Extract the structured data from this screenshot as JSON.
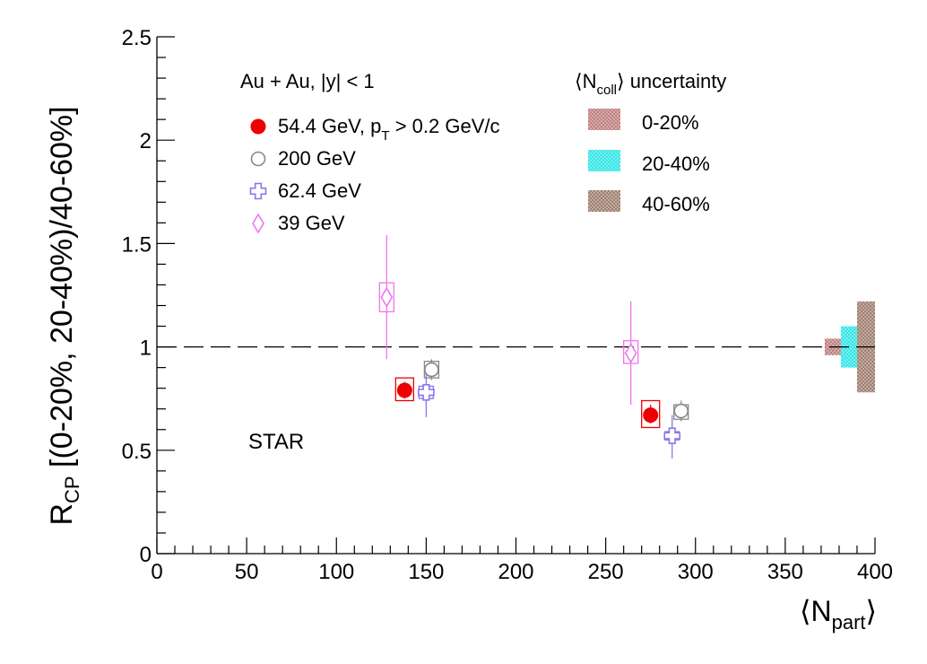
{
  "chart_data": {
    "type": "scatter",
    "title": "",
    "ylabel_main": "R",
    "ylabel_sub": "CP",
    "ylabel_rest": " [(0-20%, 20-40%)/40-60%]",
    "xlabel_open": "⟨N",
    "xlabel_sub": "part",
    "xlabel_close": "⟩",
    "xlim": [
      0,
      400
    ],
    "ylim": [
      0,
      2.5
    ],
    "x_ticks": [
      0,
      50,
      100,
      150,
      200,
      250,
      300,
      350,
      400
    ],
    "x_tick_labels": [
      "0",
      "50",
      "100",
      "150",
      "200",
      "250",
      "300",
      "350",
      "400"
    ],
    "y_ticks": [
      0,
      0.5,
      1,
      1.5,
      2,
      2.5
    ],
    "y_tick_labels": [
      "0",
      "0.5",
      "1",
      "1.5",
      "2",
      "2.5"
    ],
    "reference_line": 1,
    "annotations": {
      "system": "Au + Au, |y| < 1",
      "experiment": "STAR"
    },
    "legend_placement": "top-left",
    "series": [
      {
        "name": "54.4 GeV,  p",
        "name_sub": "T",
        "name_rest": " > 0.2 GeV/c",
        "marker": "filled-circle",
        "color": "#ee0000",
        "points": [
          {
            "x": 138,
            "y": 0.79,
            "stat_lo": 0.75,
            "stat_hi": 0.83,
            "sys_lo": 0.74,
            "sys_hi": 0.85
          },
          {
            "x": 275,
            "y": 0.67,
            "stat_lo": 0.63,
            "stat_hi": 0.72,
            "sys_lo": 0.61,
            "sys_hi": 0.74
          }
        ]
      },
      {
        "name": "200 GeV",
        "marker": "open-circle",
        "color": "#888888",
        "points": [
          {
            "x": 153,
            "y": 0.89,
            "stat_lo": 0.84,
            "stat_hi": 0.94,
            "sys_lo": 0.85,
            "sys_hi": 0.93
          },
          {
            "x": 292,
            "y": 0.69,
            "stat_lo": 0.64,
            "stat_hi": 0.74,
            "sys_lo": 0.65,
            "sys_hi": 0.72
          }
        ]
      },
      {
        "name": "62.4 GeV",
        "marker": "open-cross",
        "color": "#8877ee",
        "points": [
          {
            "x": 150,
            "y": 0.78,
            "stat_lo": 0.66,
            "stat_hi": 0.87,
            "sys_lo": 0.75,
            "sys_hi": 0.81
          },
          {
            "x": 287,
            "y": 0.57,
            "stat_lo": 0.46,
            "stat_hi": 0.67,
            "sys_lo": 0.55,
            "sys_hi": 0.59
          }
        ]
      },
      {
        "name": "39 GeV",
        "marker": "open-diamond",
        "color": "#ee77ee",
        "points": [
          {
            "x": 128,
            "y": 1.24,
            "stat_lo": 0.94,
            "stat_hi": 1.54,
            "sys_lo": 1.17,
            "sys_hi": 1.31
          },
          {
            "x": 264,
            "y": 0.97,
            "stat_lo": 0.72,
            "stat_hi": 1.22,
            "sys_lo": 0.92,
            "sys_hi": 1.03
          }
        ]
      }
    ],
    "ncoll_uncertainty": {
      "title_open": "⟨N",
      "title_sub": "coll",
      "title_rest": "⟩ uncertainty",
      "bands": [
        {
          "label": "0-20%",
          "color": "#c08080",
          "x0": 372,
          "x1": 381,
          "y_lo": 0.96,
          "y_hi": 1.04
        },
        {
          "label": "20-40%",
          "color": "#33e6e6",
          "x0": 381,
          "x1": 390,
          "y_lo": 0.9,
          "y_hi": 1.1
        },
        {
          "label": "40-60%",
          "color": "#a08070",
          "x0": 390,
          "x1": 400,
          "y_lo": 0.78,
          "y_hi": 1.22
        }
      ]
    }
  }
}
